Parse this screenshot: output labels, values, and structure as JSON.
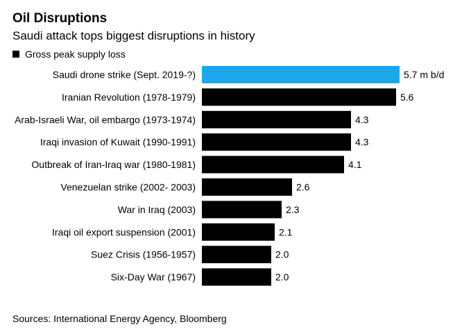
{
  "title": "Oil Disruptions",
  "subtitle": "Saudi attack tops biggest disruptions in history",
  "source": "Sources: International Energy Agency, Bloomberg",
  "colors": {
    "highlight": "#1aa7ec",
    "bar": "#000000"
  },
  "chart_data": {
    "type": "bar",
    "orientation": "horizontal",
    "legend": [
      "Gross peak supply loss"
    ],
    "categories": [
      "Saudi drone strike (Sept. 2019-?)",
      "Iranian Revolution (1978-1979)",
      "Arab-Israeli War, oil embargo (1973-1974)",
      "Iraqi invasion of Kuwait (1990-1991)",
      "Outbreak of Iran-Iraq war (1980-1981)",
      "Venezuelan strike (2002- 2003)",
      "War in Iraq (2003)",
      "Iraqi oil export suspension (2001)",
      "Suez Crisis (1956-1957)",
      "Six-Day War (1967)"
    ],
    "values": [
      5.7,
      5.6,
      4.3,
      4.3,
      4.1,
      2.6,
      2.3,
      2.1,
      2.0,
      2.0
    ],
    "value_labels": [
      "5.7 m b/d",
      "5.6",
      "4.3",
      "4.3",
      "4.1",
      "2.6",
      "2.3",
      "2.1",
      "2.0",
      "2.0"
    ],
    "highlight_index": 0,
    "xlim": [
      0,
      5.7
    ],
    "grid": false
  }
}
